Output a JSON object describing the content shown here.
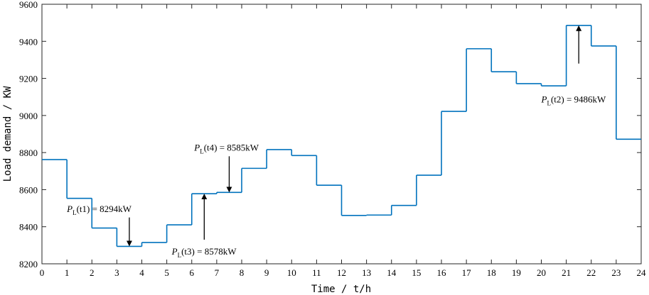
{
  "chart_data": {
    "type": "line",
    "step": true,
    "x": [
      0,
      1,
      2,
      3,
      4,
      5,
      6,
      7,
      8,
      9,
      10,
      11,
      12,
      13,
      14,
      15,
      16,
      17,
      18,
      19,
      20,
      21,
      22,
      23
    ],
    "series": [
      {
        "values": [
          8762,
          8553,
          8393,
          8294,
          8315,
          8410,
          8578,
          8585,
          8715,
          8816,
          8784,
          8624,
          8461,
          8463,
          8515,
          8678,
          9022,
          9360,
          9236,
          9172,
          9160,
          9486,
          9375,
          8872
        ],
        "color": "#0072bd"
      }
    ],
    "xlabel": "Time / t/h",
    "ylabel": "Load demand / KW",
    "xlim": [
      0,
      24
    ],
    "ylim": [
      8200,
      9600
    ],
    "xticks": [
      "0",
      "1",
      "2",
      "3",
      "4",
      "5",
      "6",
      "7",
      "8",
      "9",
      "10",
      "11",
      "12",
      "13",
      "14",
      "15",
      "16",
      "17",
      "18",
      "19",
      "20",
      "21",
      "22",
      "23",
      "24"
    ],
    "yticks": [
      "8200",
      "8400",
      "8600",
      "8800",
      "9000",
      "9200",
      "9400",
      "9600"
    ],
    "grid": false,
    "annotations": [
      {
        "prefix": "P",
        "sub": "L",
        "text": "(t1) = 8294kW",
        "x": 3.5,
        "y": 8294,
        "arrow_from": 8450,
        "label_x": 1.0,
        "label_y": 8480
      },
      {
        "prefix": "P",
        "sub": "L",
        "text": "(t2) = 9486kW",
        "x": 21.5,
        "y": 9486,
        "arrow_from": 9280,
        "label_x": 20.0,
        "label_y": 9070
      },
      {
        "prefix": "P",
        "sub": "L",
        "text": "(t3) = 8578kW",
        "x": 6.5,
        "y": 8578,
        "arrow_from": 8330,
        "label_x": 5.2,
        "label_y": 8250
      },
      {
        "prefix": "P",
        "sub": "L",
        "text": "(t4) = 8585kW",
        "x": 7.5,
        "y": 8585,
        "arrow_from": 8780,
        "label_x": 6.1,
        "label_y": 8810
      }
    ]
  }
}
